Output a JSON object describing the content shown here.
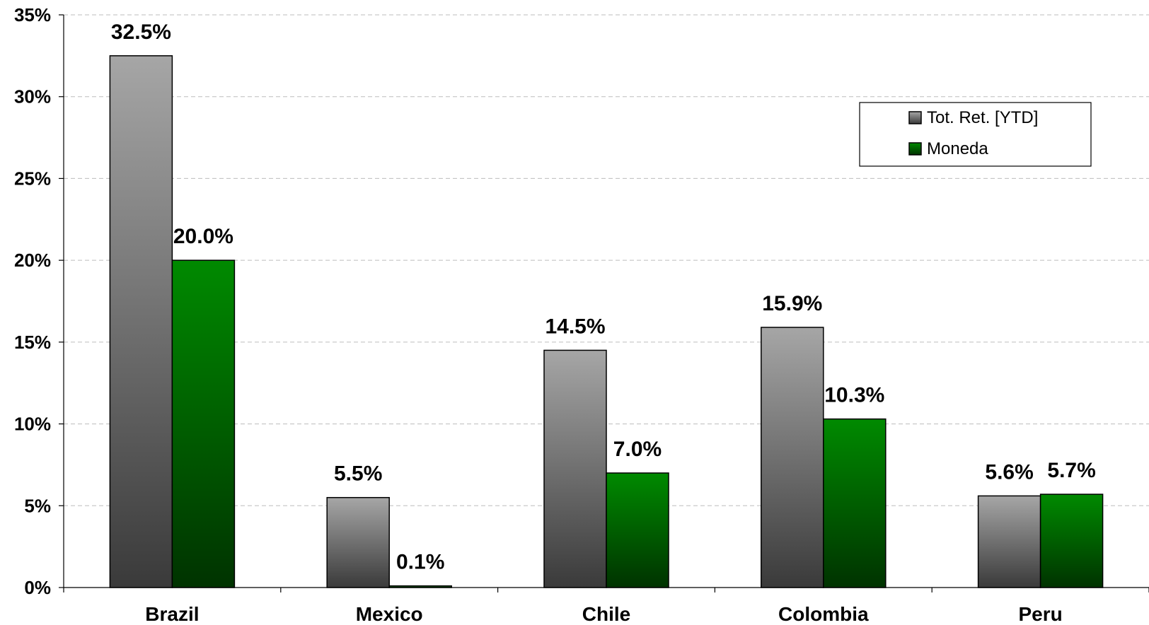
{
  "chart_data": {
    "type": "bar",
    "title": "",
    "xlabel": "",
    "ylabel": "",
    "categories": [
      "Brazil",
      "Mexico",
      "Chile",
      "Colombia",
      "Peru"
    ],
    "series": [
      {
        "name": "Tot. Ret. [YTD]",
        "values": [
          32.5,
          5.5,
          14.5,
          15.9,
          5.6
        ],
        "labels": [
          "32.5%",
          "5.5%",
          "14.5%",
          "15.9%",
          "5.6%"
        ],
        "color": "#7f7f7f"
      },
      {
        "name": "Moneda",
        "values": [
          20.0,
          0.1,
          7.0,
          10.3,
          5.7
        ],
        "labels": [
          "20.0%",
          "0.1%",
          "7.0%",
          "10.3%",
          "5.7%"
        ],
        "color": "#008000"
      }
    ],
    "ylim": [
      0,
      35
    ],
    "yticks": [
      0,
      5,
      10,
      15,
      20,
      25,
      30,
      35
    ],
    "ytick_labels": [
      "0%",
      "5%",
      "10%",
      "15%",
      "20%",
      "25%",
      "30%",
      "35%"
    ],
    "grid": true,
    "legend_position": "top-right"
  }
}
